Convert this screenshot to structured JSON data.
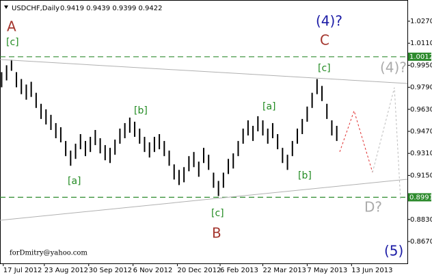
{
  "chart_data": {
    "type": "ohlc",
    "title": "USDCHF,Daily",
    "subtitle": "0.9419 0.9439 0.9399 0.9422",
    "x": [
      1,
      4,
      7,
      10,
      13,
      16,
      19,
      22,
      25,
      28,
      31,
      34,
      37,
      40,
      43,
      46,
      49,
      52,
      55,
      58,
      61,
      64,
      67,
      70,
      73,
      76,
      79,
      82,
      85,
      88,
      91,
      94,
      97,
      100,
      103,
      106,
      109,
      112,
      115,
      118,
      121,
      124,
      127,
      130,
      133,
      136,
      139,
      142,
      145,
      148,
      151,
      154,
      157,
      160,
      163,
      166,
      169,
      172,
      175,
      178,
      181,
      184,
      187,
      190,
      193,
      196,
      199,
      202,
      205
    ],
    "high": [
      0.99,
      0.995,
      0.999,
      0.99,
      0.985,
      0.981,
      0.983,
      0.975,
      0.967,
      0.963,
      0.959,
      0.953,
      0.95,
      0.94,
      0.933,
      0.938,
      0.945,
      0.94,
      0.943,
      0.948,
      0.942,
      0.937,
      0.935,
      0.941,
      0.949,
      0.953,
      0.957,
      0.954,
      0.949,
      0.943,
      0.939,
      0.943,
      0.945,
      0.94,
      0.933,
      0.923,
      0.919,
      0.921,
      0.929,
      0.932,
      0.925,
      0.935,
      0.93,
      0.917,
      0.911,
      0.917,
      0.927,
      0.931,
      0.94,
      0.949,
      0.955,
      0.951,
      0.958,
      0.955,
      0.949,
      0.953,
      0.945,
      0.935,
      0.93,
      0.94,
      0.949,
      0.956,
      0.965,
      0.975,
      0.985,
      0.98,
      0.967,
      0.955,
      0.951
    ],
    "low": [
      0.979,
      0.984,
      0.991,
      0.979,
      0.974,
      0.97,
      0.972,
      0.964,
      0.956,
      0.952,
      0.948,
      0.942,
      0.939,
      0.929,
      0.922,
      0.927,
      0.934,
      0.929,
      0.932,
      0.937,
      0.931,
      0.926,
      0.924,
      0.93,
      0.938,
      0.942,
      0.946,
      0.943,
      0.938,
      0.932,
      0.928,
      0.932,
      0.934,
      0.929,
      0.922,
      0.912,
      0.908,
      0.91,
      0.918,
      0.921,
      0.914,
      0.924,
      0.919,
      0.906,
      0.9,
      0.906,
      0.916,
      0.92,
      0.929,
      0.938,
      0.944,
      0.94,
      0.947,
      0.944,
      0.938,
      0.942,
      0.934,
      0.924,
      0.919,
      0.929,
      0.938,
      0.945,
      0.954,
      0.964,
      0.974,
      0.969,
      0.956,
      0.944,
      0.94
    ],
    "color": "#000000",
    "xlim": [
      0,
      248
    ],
    "xticks": [
      {
        "value": 2,
        "label": "17 Jul 2012"
      },
      {
        "value": 27,
        "label": "23 Aug 2012"
      },
      {
        "value": 54,
        "label": "30 Sep 2012"
      },
      {
        "value": 81,
        "label": "6 Nov 2012"
      },
      {
        "value": 108,
        "label": "20 Dec 2012"
      },
      {
        "value": 134,
        "label": "6 Feb 2013"
      },
      {
        "value": 160,
        "label": "22 Mar 2013"
      },
      {
        "value": 187,
        "label": "7 May 2013"
      },
      {
        "value": 214,
        "label": "13 Jun 2013"
      }
    ],
    "ylim": [
      0.8511,
      1.0424
    ],
    "yticks": [
      {
        "value": 1.027,
        "label": "1.0270"
      },
      {
        "value": 1.011,
        "label": "1.0110"
      },
      {
        "value": 0.995,
        "label": "0.9950"
      },
      {
        "value": 0.979,
        "label": "0.9790"
      },
      {
        "value": 0.963,
        "label": "0.9630"
      },
      {
        "value": 0.947,
        "label": "0.9470"
      },
      {
        "value": 0.931,
        "label": "0.9310"
      },
      {
        "value": 0.915,
        "label": "0.9150"
      },
      {
        "value": 0.883,
        "label": "0.8830"
      },
      {
        "value": 0.867,
        "label": "0.8670"
      }
    ],
    "levels": [
      {
        "value": 1.0012,
        "label": "1.0012"
      },
      {
        "value": 0.8991,
        "label": "0.8991"
      }
    ],
    "level_color": "#2e8b2e",
    "annotations": [
      "A",
      "[c]",
      "(4)?",
      "C",
      "[c]",
      "(4)?",
      "[b]",
      "[a]",
      "[a]",
      "[b]",
      "[c]",
      "B",
      "D?",
      "(5)",
      "forDmitry@yahoo.com"
    ]
  }
}
